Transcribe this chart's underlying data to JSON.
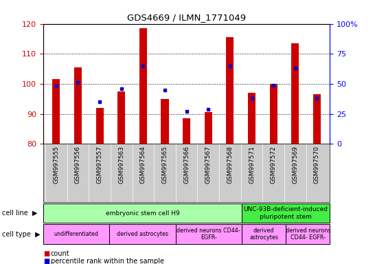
{
  "title": "GDS4669 / ILMN_1771049",
  "samples": [
    "GSM997555",
    "GSM997556",
    "GSM997557",
    "GSM997563",
    "GSM997564",
    "GSM997565",
    "GSM997566",
    "GSM997567",
    "GSM997568",
    "GSM997571",
    "GSM997572",
    "GSM997569",
    "GSM997570"
  ],
  "count_values": [
    101.5,
    105.5,
    92.0,
    97.5,
    118.5,
    95.0,
    88.5,
    90.5,
    115.5,
    97.0,
    100.0,
    113.5,
    96.5
  ],
  "percentile_values": [
    48,
    51,
    35,
    46,
    65,
    45,
    27,
    29,
    65,
    38,
    49,
    63,
    38
  ],
  "ylim_left": [
    80,
    120
  ],
  "ylim_right": [
    0,
    100
  ],
  "yticks_left": [
    80,
    90,
    100,
    110,
    120
  ],
  "yticks_right": [
    0,
    25,
    50,
    75,
    100
  ],
  "ytick_labels_right": [
    "0",
    "25",
    "50",
    "75",
    "100%"
  ],
  "bar_color": "#cc0000",
  "dot_color": "#0000cc",
  "cell_line_groups": [
    {
      "label": "embryonic stem cell H9",
      "start": 0,
      "end": 8,
      "color": "#aaffaa"
    },
    {
      "label": "UNC-93B-deficient-induced\npluripotent stem",
      "start": 9,
      "end": 12,
      "color": "#44ee44"
    }
  ],
  "cell_type_groups": [
    {
      "label": "undifferentiated",
      "start": 0,
      "end": 2,
      "color": "#ff99ff"
    },
    {
      "label": "derived astrocytes",
      "start": 3,
      "end": 5,
      "color": "#ff99ff"
    },
    {
      "label": "derived neurons CD44-\nEGFR-",
      "start": 6,
      "end": 8,
      "color": "#ff99ff"
    },
    {
      "label": "derived\nastrocytes",
      "start": 9,
      "end": 10,
      "color": "#ff99ff"
    },
    {
      "label": "derived neurons\nCD44- EGFR-",
      "start": 11,
      "end": 12,
      "color": "#ff99ff"
    }
  ],
  "legend_count_color": "#cc0000",
  "legend_dot_color": "#0000cc",
  "xtick_bg_color": "#cccccc",
  "bar_width": 0.35
}
